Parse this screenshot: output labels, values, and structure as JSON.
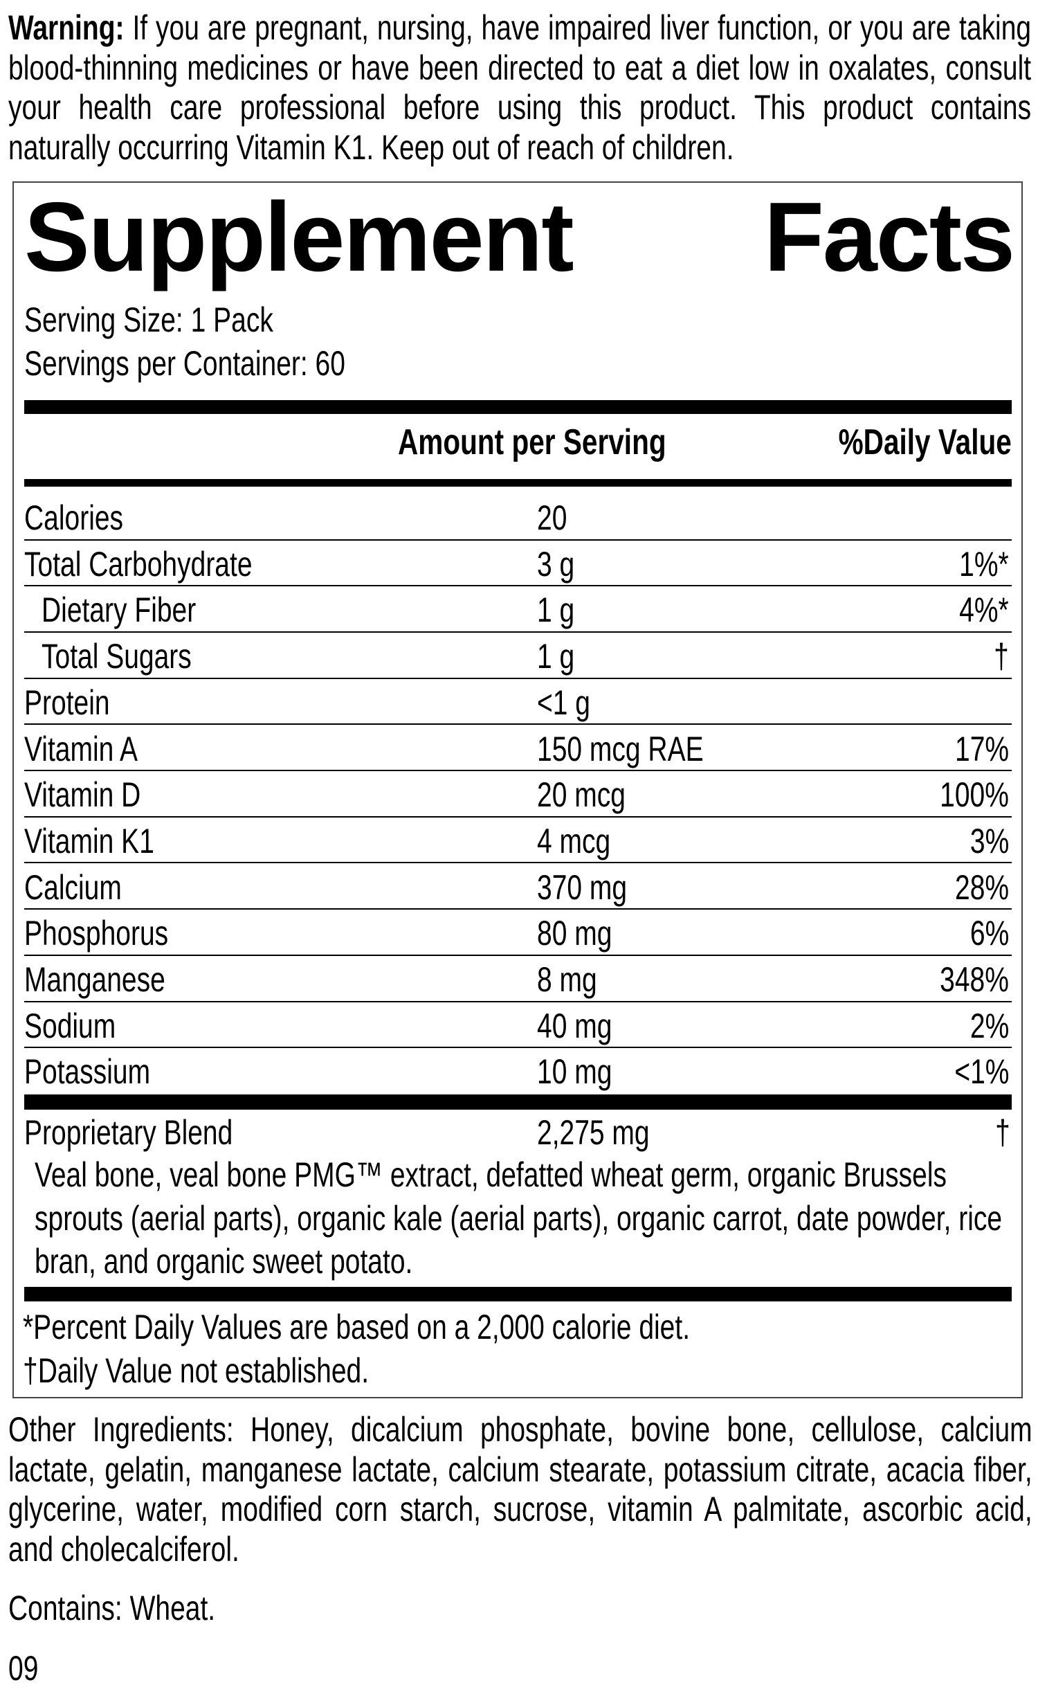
{
  "warning": {
    "label": "Warning:",
    "text": " If you are pregnant, nursing, have impaired liver function, or you are taking blood-thinning medicines or have been directed to eat a diet low in oxalates, consult your health care professional before using this product. This product contains naturally occurring Vitamin K1. Keep out of reach of children."
  },
  "facts": {
    "title_word1": "Supplement",
    "title_word2": "Facts",
    "serving_size": "Serving Size: 1 Pack",
    "servings_per_container": "Servings per Container: 60",
    "header_amount": "Amount per Serving",
    "header_dv": "%Daily Value",
    "rows": [
      {
        "name": "Calories",
        "amount": "20",
        "dv": ""
      },
      {
        "name": "Total Carbohydrate",
        "amount": "3 g",
        "dv": "1%*"
      },
      {
        "name": "Dietary Fiber",
        "amount": "1 g",
        "dv": "4%*"
      },
      {
        "name": "Total Sugars",
        "amount": "1 g",
        "dv": "†"
      },
      {
        "name": "Protein",
        "amount": "<1 g",
        "dv": ""
      },
      {
        "name": "Vitamin A",
        "amount": "150 mcg RAE",
        "dv": "17%"
      },
      {
        "name": "Vitamin D",
        "amount": "20 mcg",
        "dv": "100%"
      },
      {
        "name": "Vitamin K1",
        "amount": "4 mcg",
        "dv": "3%"
      },
      {
        "name": "Calcium",
        "amount": "370 mg",
        "dv": "28%"
      },
      {
        "name": "Phosphorus",
        "amount": "80 mg",
        "dv": "6%"
      },
      {
        "name": "Manganese",
        "amount": "8 mg",
        "dv": "348%"
      },
      {
        "name": "Sodium",
        "amount": "40 mg",
        "dv": "2%"
      },
      {
        "name": "Potassium",
        "amount": "10 mg",
        "dv": "<1%"
      }
    ],
    "blend": {
      "name": "Proprietary Blend",
      "amount": "2,275 mg",
      "dv": "†",
      "description": "Veal bone, veal bone PMG™ extract, defatted wheat germ, organic Brussels sprouts (aerial parts), organic kale (aerial parts), organic carrot, date powder, rice bran, and organic sweet potato."
    },
    "footnote_percent": "*Percent Daily Values are based on a 2,000 calorie diet.",
    "footnote_dagger": "†Daily Value not established."
  },
  "other_ingredients": "Other Ingredients: Honey, dicalcium phosphate, bovine bone, cellulose, calcium lactate, gelatin, manganese lactate, calcium stearate, potassium citrate, acacia fiber, glycerine, water, modified corn starch, sucrose, vitamin A palmitate, ascorbic acid, and cholecalciferol.",
  "contains": "Contains: Wheat.",
  "code": "09"
}
